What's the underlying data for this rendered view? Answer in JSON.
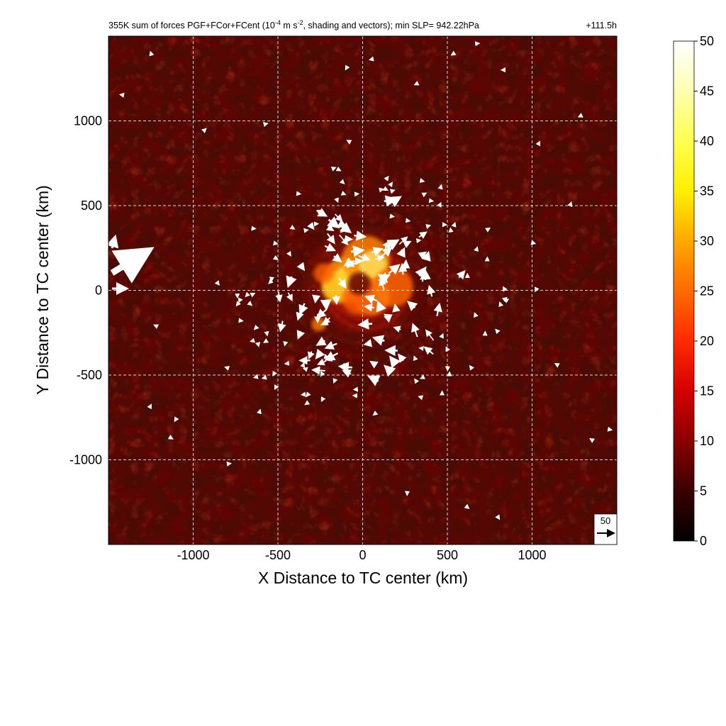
{
  "chart_data": {
    "type": "heatmap",
    "title": "355K sum of forces PGF+FCor+FCent (10",
    "title_exp": "-4",
    "title_mid": " m s",
    "title_exp2": "-2",
    "title_end": ", shading and vectors); min SLP= 942.22hPa",
    "forecast_hour": "+111.5h",
    "xlabel": "X Distance to TC center (km)",
    "ylabel": "Y Distance to TC center (km)",
    "xlim": [
      -1500,
      1500
    ],
    "ylim": [
      -1500,
      1500
    ],
    "x_ticks": [
      -1000,
      -500,
      0,
      500,
      1000
    ],
    "y_ticks": [
      -1000,
      -500,
      0,
      500,
      1000
    ],
    "grid": true,
    "colorbar": {
      "min": 0,
      "max": 50,
      "ticks": [
        0,
        5,
        10,
        15,
        20,
        25,
        30,
        35,
        40,
        45,
        50
      ],
      "colormap": "hot"
    },
    "reference_vector": {
      "label": "50",
      "magnitude": 50
    },
    "field_description": {
      "background_level": 6,
      "core_max": 48,
      "core_center_km": [
        0,
        80
      ],
      "core_radius_km": 280
    },
    "colors": {
      "background": "#4a0b05",
      "mid": "#b01505",
      "high": "#ff8c00",
      "peak": "#ffffa0",
      "vector": "#ffffff"
    }
  }
}
